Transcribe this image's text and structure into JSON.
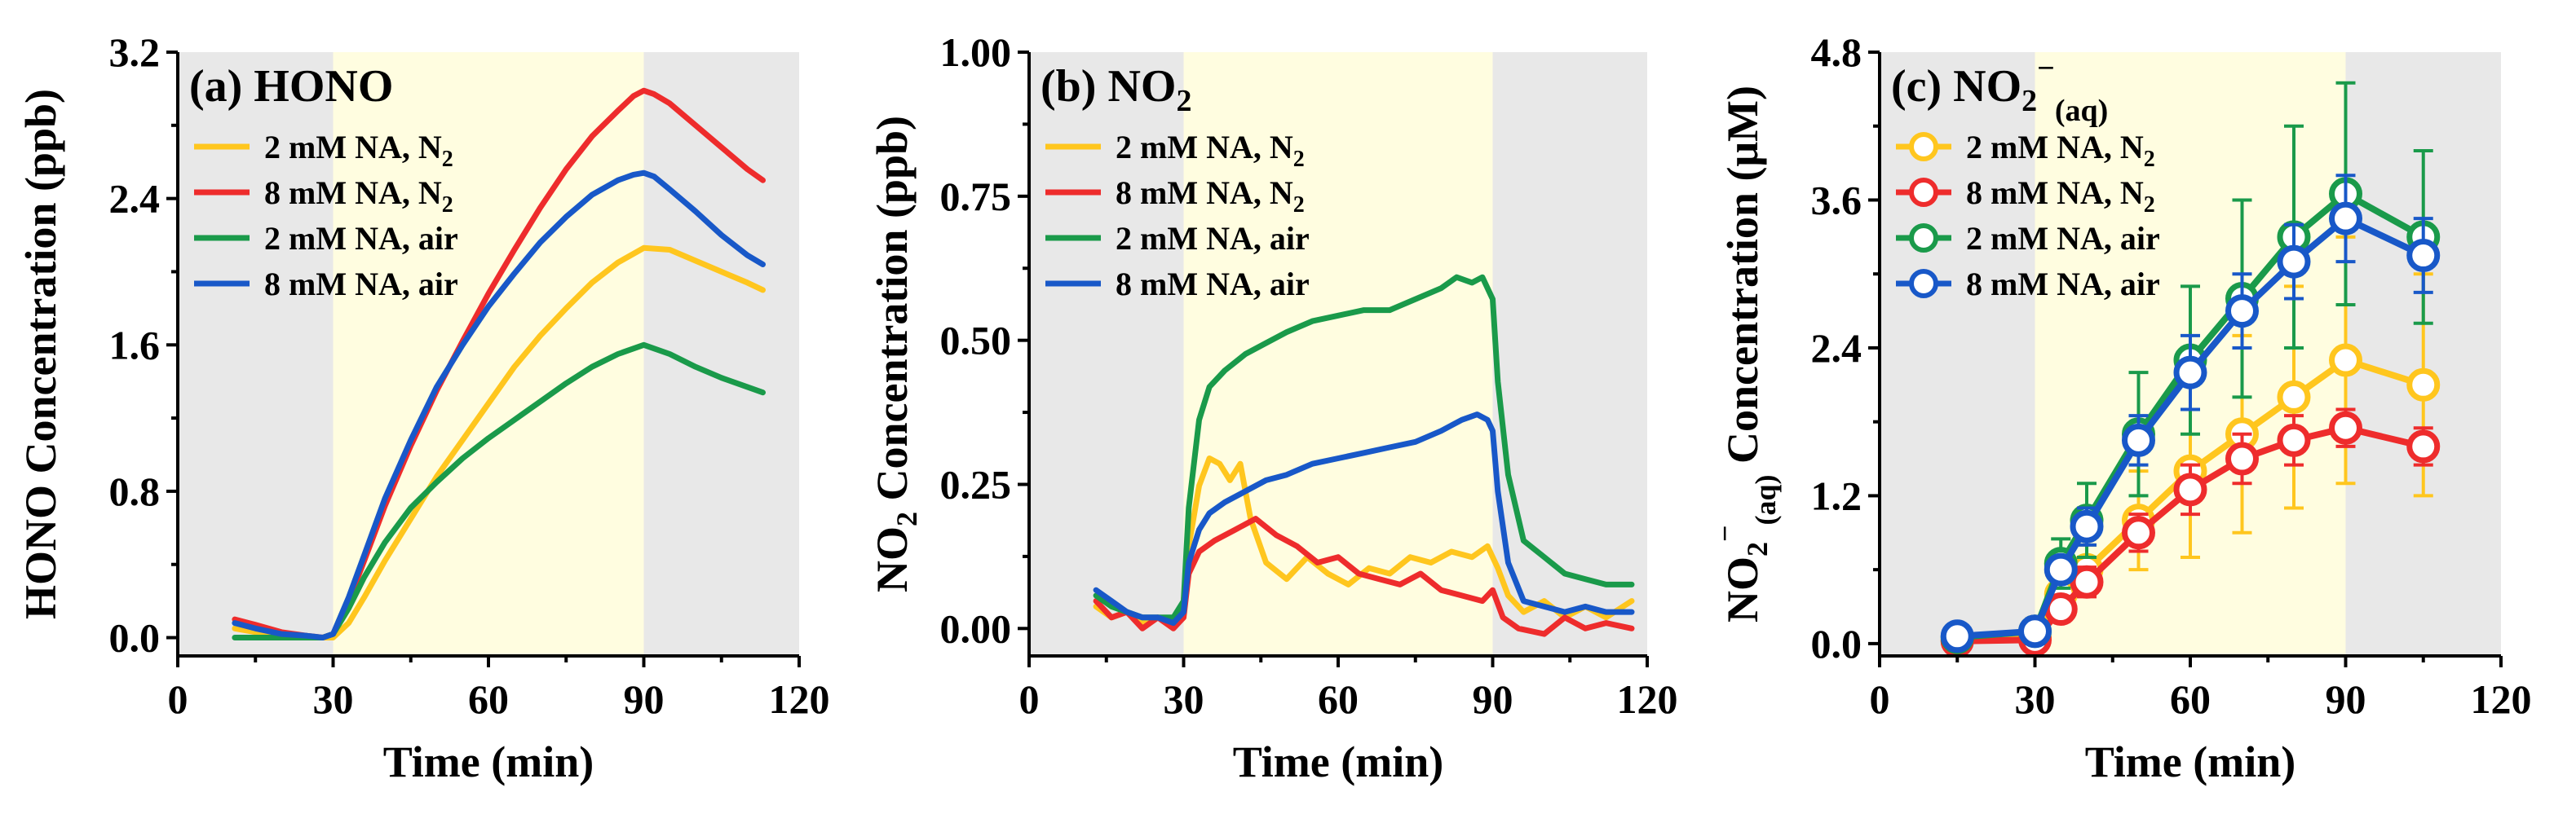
{
  "colors": {
    "yellow": "#FFC61E",
    "red": "#EE2C2C",
    "green": "#1A9A4A",
    "blue": "#1858C8",
    "shade_gray": "#E8E8E8",
    "shade_yellow": "#FFFDE0"
  },
  "chart_data": [
    {
      "type": "line",
      "panel_label": "(a) HONO",
      "title": "(a) HONO",
      "xlabel": "Time (min)",
      "ylabel": "HONO Concentration (ppb)",
      "xlim": [
        0,
        120
      ],
      "ylim": [
        -0.1,
        3.2
      ],
      "xticks": [
        "0",
        "30",
        "60",
        "90",
        "120"
      ],
      "yticks": [
        "0.0",
        "0.8",
        "1.6",
        "2.4",
        "3.2"
      ],
      "shaded_regions": [
        {
          "from": 0,
          "to": 30,
          "color": "shade_gray"
        },
        {
          "from": 30,
          "to": 90,
          "color": "shade_yellow"
        },
        {
          "from": 90,
          "to": 120,
          "color": "shade_gray"
        }
      ],
      "legend": {
        "placement": "upper-left"
      },
      "series": [
        {
          "name": "2 mM NA, N2",
          "label_main": "2 mM NA, N",
          "label_sub": "2",
          "color": "yellow",
          "x": [
            11,
            15,
            20,
            25,
            28,
            30,
            33,
            36,
            40,
            45,
            50,
            55,
            60,
            65,
            70,
            75,
            80,
            85,
            90,
            95,
            100,
            105,
            110,
            113
          ],
          "y": [
            0.05,
            0.03,
            0.01,
            0.0,
            0.0,
            0.0,
            0.08,
            0.22,
            0.42,
            0.65,
            0.88,
            1.08,
            1.28,
            1.48,
            1.65,
            1.8,
            1.94,
            2.05,
            2.13,
            2.12,
            2.06,
            2.0,
            1.94,
            1.9
          ]
        },
        {
          "name": "8 mM NA, N2",
          "label_main": "8 mM NA, N",
          "label_sub": "2",
          "color": "red",
          "x": [
            11,
            15,
            20,
            25,
            28,
            30,
            33,
            36,
            40,
            45,
            50,
            55,
            60,
            65,
            70,
            75,
            80,
            85,
            88,
            90,
            92,
            95,
            100,
            105,
            110,
            113
          ],
          "y": [
            0.1,
            0.07,
            0.03,
            0.01,
            0.0,
            0.02,
            0.2,
            0.42,
            0.72,
            1.05,
            1.35,
            1.62,
            1.88,
            2.12,
            2.35,
            2.56,
            2.74,
            2.88,
            2.96,
            2.99,
            2.97,
            2.92,
            2.8,
            2.68,
            2.56,
            2.5
          ]
        },
        {
          "name": "2 mM NA, air",
          "label_main": "2 mM NA, air",
          "label_sub": "",
          "color": "green",
          "x": [
            11,
            15,
            20,
            25,
            28,
            30,
            33,
            36,
            40,
            45,
            50,
            55,
            60,
            65,
            70,
            75,
            80,
            85,
            90,
            95,
            100,
            105,
            110,
            113
          ],
          "y": [
            0.0,
            0.0,
            0.0,
            0.0,
            0.0,
            0.02,
            0.16,
            0.33,
            0.52,
            0.71,
            0.85,
            0.98,
            1.09,
            1.19,
            1.29,
            1.39,
            1.48,
            1.55,
            1.6,
            1.55,
            1.48,
            1.42,
            1.37,
            1.34
          ]
        },
        {
          "name": "8 mM NA, air",
          "label_main": "8 mM NA, air",
          "label_sub": "",
          "color": "blue",
          "x": [
            11,
            15,
            20,
            25,
            28,
            30,
            33,
            36,
            40,
            45,
            50,
            55,
            60,
            65,
            70,
            75,
            80,
            85,
            88,
            90,
            92,
            95,
            100,
            105,
            110,
            113
          ],
          "y": [
            0.08,
            0.05,
            0.02,
            0.01,
            0.0,
            0.02,
            0.22,
            0.45,
            0.76,
            1.08,
            1.37,
            1.6,
            1.81,
            1.99,
            2.16,
            2.3,
            2.42,
            2.5,
            2.53,
            2.54,
            2.52,
            2.45,
            2.33,
            2.2,
            2.09,
            2.04
          ]
        }
      ]
    },
    {
      "type": "line",
      "panel_label": "(b) NO2",
      "title_main": "(b) NO",
      "title_sub": "2",
      "xlabel": "Time (min)",
      "ylabel_main": "NO",
      "ylabel_sub": "2",
      "ylabel_rest": " Concentration (ppb)",
      "xlim": [
        0,
        120
      ],
      "ylim": [
        -0.05,
        1.05
      ],
      "xticks": [
        "0",
        "30",
        "60",
        "90",
        "120"
      ],
      "yticks": [
        "0.00",
        "0.25",
        "0.50",
        "0.75",
        "1.00"
      ],
      "shaded_regions": [
        {
          "from": 0,
          "to": 30,
          "color": "shade_gray"
        },
        {
          "from": 30,
          "to": 90,
          "color": "shade_yellow"
        },
        {
          "from": 90,
          "to": 120,
          "color": "shade_gray"
        }
      ],
      "legend": {
        "placement": "upper-left"
      },
      "series": [
        {
          "name": "2 mM NA, N2",
          "label_main": "2 mM NA, N",
          "label_sub": "2",
          "color": "yellow",
          "x": [
            13,
            16,
            19,
            22,
            25,
            28,
            30,
            31,
            33,
            35,
            37,
            39,
            41,
            43,
            46,
            50,
            54,
            58,
            62,
            66,
            70,
            74,
            78,
            82,
            86,
            89,
            91,
            93,
            96,
            100,
            104,
            108,
            112,
            117
          ],
          "y": [
            0.04,
            0.02,
            0.03,
            0.01,
            0.02,
            0.01,
            0.05,
            0.15,
            0.26,
            0.31,
            0.3,
            0.27,
            0.3,
            0.2,
            0.12,
            0.09,
            0.13,
            0.1,
            0.08,
            0.11,
            0.1,
            0.13,
            0.12,
            0.14,
            0.13,
            0.15,
            0.11,
            0.06,
            0.03,
            0.05,
            0.02,
            0.04,
            0.02,
            0.05
          ]
        },
        {
          "name": "8 mM NA, N2",
          "label_main": "8 mM NA, N",
          "label_sub": "2",
          "color": "red",
          "x": [
            13,
            16,
            19,
            22,
            25,
            28,
            30,
            31,
            33,
            36,
            40,
            44,
            48,
            52,
            56,
            60,
            64,
            68,
            72,
            76,
            80,
            84,
            88,
            90,
            92,
            95,
            100,
            104,
            108,
            112,
            117
          ],
          "y": [
            0.05,
            0.02,
            0.03,
            0.0,
            0.02,
            0.0,
            0.02,
            0.1,
            0.14,
            0.16,
            0.18,
            0.2,
            0.17,
            0.15,
            0.12,
            0.13,
            0.1,
            0.09,
            0.08,
            0.1,
            0.07,
            0.06,
            0.05,
            0.07,
            0.02,
            0.0,
            -0.01,
            0.02,
            0.0,
            0.01,
            0.0
          ]
        },
        {
          "name": "2 mM NA, air",
          "label_main": "2 mM NA, air",
          "label_sub": "",
          "color": "green",
          "x": [
            13,
            16,
            19,
            22,
            25,
            28,
            30,
            31,
            33,
            35,
            38,
            42,
            46,
            50,
            55,
            60,
            65,
            70,
            75,
            80,
            83,
            86,
            88,
            90,
            91,
            93,
            96,
            100,
            104,
            108,
            112,
            117
          ],
          "y": [
            0.06,
            0.04,
            0.03,
            0.02,
            0.02,
            0.02,
            0.05,
            0.22,
            0.38,
            0.44,
            0.47,
            0.5,
            0.52,
            0.54,
            0.56,
            0.57,
            0.58,
            0.58,
            0.6,
            0.62,
            0.64,
            0.63,
            0.64,
            0.6,
            0.45,
            0.28,
            0.16,
            0.13,
            0.1,
            0.09,
            0.08,
            0.08
          ]
        },
        {
          "name": "8 mM NA, air",
          "label_main": "8 mM NA, air",
          "label_sub": "",
          "color": "blue",
          "x": [
            13,
            16,
            19,
            22,
            25,
            28,
            30,
            31,
            33,
            35,
            38,
            42,
            46,
            50,
            55,
            60,
            65,
            70,
            75,
            80,
            84,
            87,
            89,
            90,
            91,
            93,
            96,
            100,
            104,
            108,
            112,
            117
          ],
          "y": [
            0.07,
            0.05,
            0.03,
            0.02,
            0.02,
            0.01,
            0.03,
            0.12,
            0.18,
            0.21,
            0.23,
            0.25,
            0.27,
            0.28,
            0.3,
            0.31,
            0.32,
            0.33,
            0.34,
            0.36,
            0.38,
            0.39,
            0.38,
            0.36,
            0.25,
            0.12,
            0.05,
            0.04,
            0.03,
            0.04,
            0.03,
            0.03
          ]
        }
      ]
    },
    {
      "type": "scatter",
      "panel_label": "(c) NO2-(aq)",
      "title_main": "(c) NO",
      "title_sub": "2",
      "title_sup": "−",
      "title_sub2": "(aq)",
      "xlabel": "Time (min)",
      "ylabel_main": "NO",
      "ylabel_sub": "2",
      "ylabel_sup": "−",
      "ylabel_sub2": "(aq)",
      "ylabel_rest": " Concentration (μM)",
      "xlim": [
        0,
        120
      ],
      "ylim": [
        -0.1,
        4.8
      ],
      "xticks": [
        "0",
        "30",
        "60",
        "90",
        "120"
      ],
      "yticks": [
        "0.0",
        "1.2",
        "2.4",
        "3.6",
        "4.8"
      ],
      "shaded_regions": [
        {
          "from": 0,
          "to": 30,
          "color": "shade_gray"
        },
        {
          "from": 30,
          "to": 90,
          "color": "shade_yellow"
        },
        {
          "from": 90,
          "to": 120,
          "color": "shade_gray"
        }
      ],
      "legend": {
        "placement": "upper-left"
      },
      "series": [
        {
          "name": "2 mM NA, N2",
          "label_main": "2 mM NA, N",
          "label_sub": "2",
          "color": "yellow",
          "x": [
            15,
            30,
            35,
            40,
            50,
            60,
            70,
            80,
            90,
            105
          ],
          "y": [
            0.03,
            0.05,
            0.4,
            0.6,
            1.0,
            1.4,
            1.7,
            2.0,
            2.3,
            2.1
          ],
          "err": [
            0.05,
            0.05,
            0.15,
            0.2,
            0.4,
            0.7,
            0.8,
            0.9,
            1.0,
            0.9
          ]
        },
        {
          "name": "8 mM NA, N2",
          "label_main": "8 mM NA, N",
          "label_sub": "2",
          "color": "red",
          "x": [
            15,
            30,
            35,
            40,
            50,
            60,
            70,
            80,
            90,
            105
          ],
          "y": [
            0.02,
            0.03,
            0.28,
            0.5,
            0.9,
            1.25,
            1.5,
            1.65,
            1.75,
            1.6
          ],
          "err": [
            0.03,
            0.04,
            0.1,
            0.12,
            0.15,
            0.2,
            0.2,
            0.2,
            0.15,
            0.15
          ]
        },
        {
          "name": "2 mM NA, air",
          "label_main": "2 mM NA, air",
          "label_sub": "",
          "color": "green",
          "x": [
            15,
            30,
            35,
            40,
            50,
            60,
            70,
            80,
            90,
            105
          ],
          "y": [
            0.05,
            0.1,
            0.65,
            1.0,
            1.7,
            2.3,
            2.8,
            3.3,
            3.65,
            3.3
          ],
          "err": [
            0.05,
            0.1,
            0.2,
            0.3,
            0.5,
            0.6,
            0.8,
            0.9,
            0.9,
            0.7
          ]
        },
        {
          "name": "8 mM NA, air",
          "label_main": "8 mM NA, air",
          "label_sub": "",
          "color": "blue",
          "x": [
            15,
            30,
            35,
            40,
            50,
            60,
            70,
            80,
            90,
            105
          ],
          "y": [
            0.06,
            0.1,
            0.6,
            0.95,
            1.65,
            2.2,
            2.7,
            3.1,
            3.45,
            3.15
          ],
          "err": [
            0.05,
            0.1,
            0.1,
            0.15,
            0.2,
            0.3,
            0.3,
            0.3,
            0.35,
            0.3
          ]
        }
      ]
    }
  ]
}
